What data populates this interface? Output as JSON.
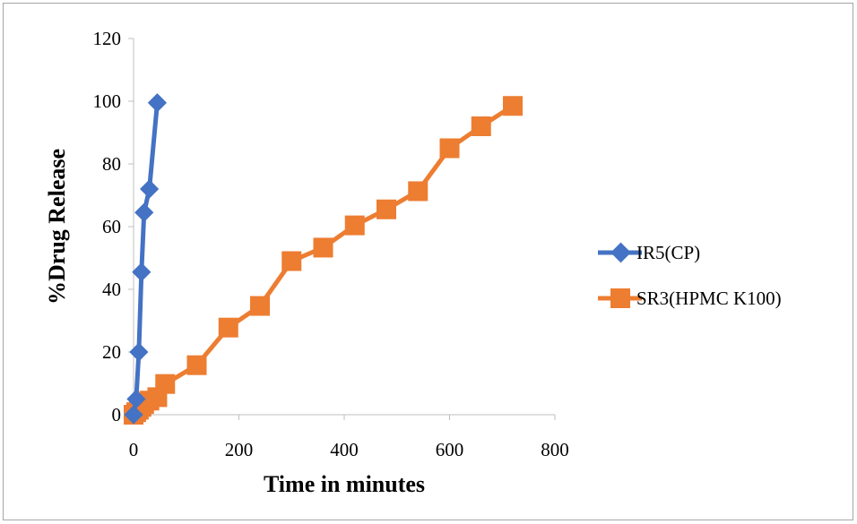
{
  "chart_data": {
    "type": "line",
    "title": "",
    "xlabel": "Time in minutes",
    "ylabel": "%Drug Release",
    "xlim": [
      0,
      800
    ],
    "ylim": [
      0,
      120
    ],
    "x_ticks": [
      0,
      200,
      400,
      600,
      800
    ],
    "y_ticks": [
      0,
      20,
      40,
      60,
      80,
      100,
      120
    ],
    "grid": false,
    "legend_position": "right",
    "series": [
      {
        "name": "IR5(CP)",
        "color": "#4472C4",
        "marker": "diamond",
        "x": [
          0,
          5,
          10,
          15,
          20,
          30,
          45
        ],
        "y": [
          0,
          5,
          20,
          45.5,
          64.5,
          72,
          99.5
        ]
      },
      {
        "name": "SR3(HPMC K100)",
        "color": "#ED7D31",
        "marker": "square",
        "x": [
          0,
          5,
          10,
          15,
          20,
          30,
          45,
          60,
          120,
          180,
          240,
          300,
          360,
          420,
          480,
          540,
          600,
          660,
          720
        ],
        "y": [
          0,
          0.8,
          1.6,
          2.5,
          3.4,
          4.5,
          5.6,
          9.8,
          15.8,
          27.8,
          34.7,
          49,
          53.3,
          60.4,
          65.5,
          71.3,
          85,
          92,
          98.5
        ]
      }
    ]
  }
}
